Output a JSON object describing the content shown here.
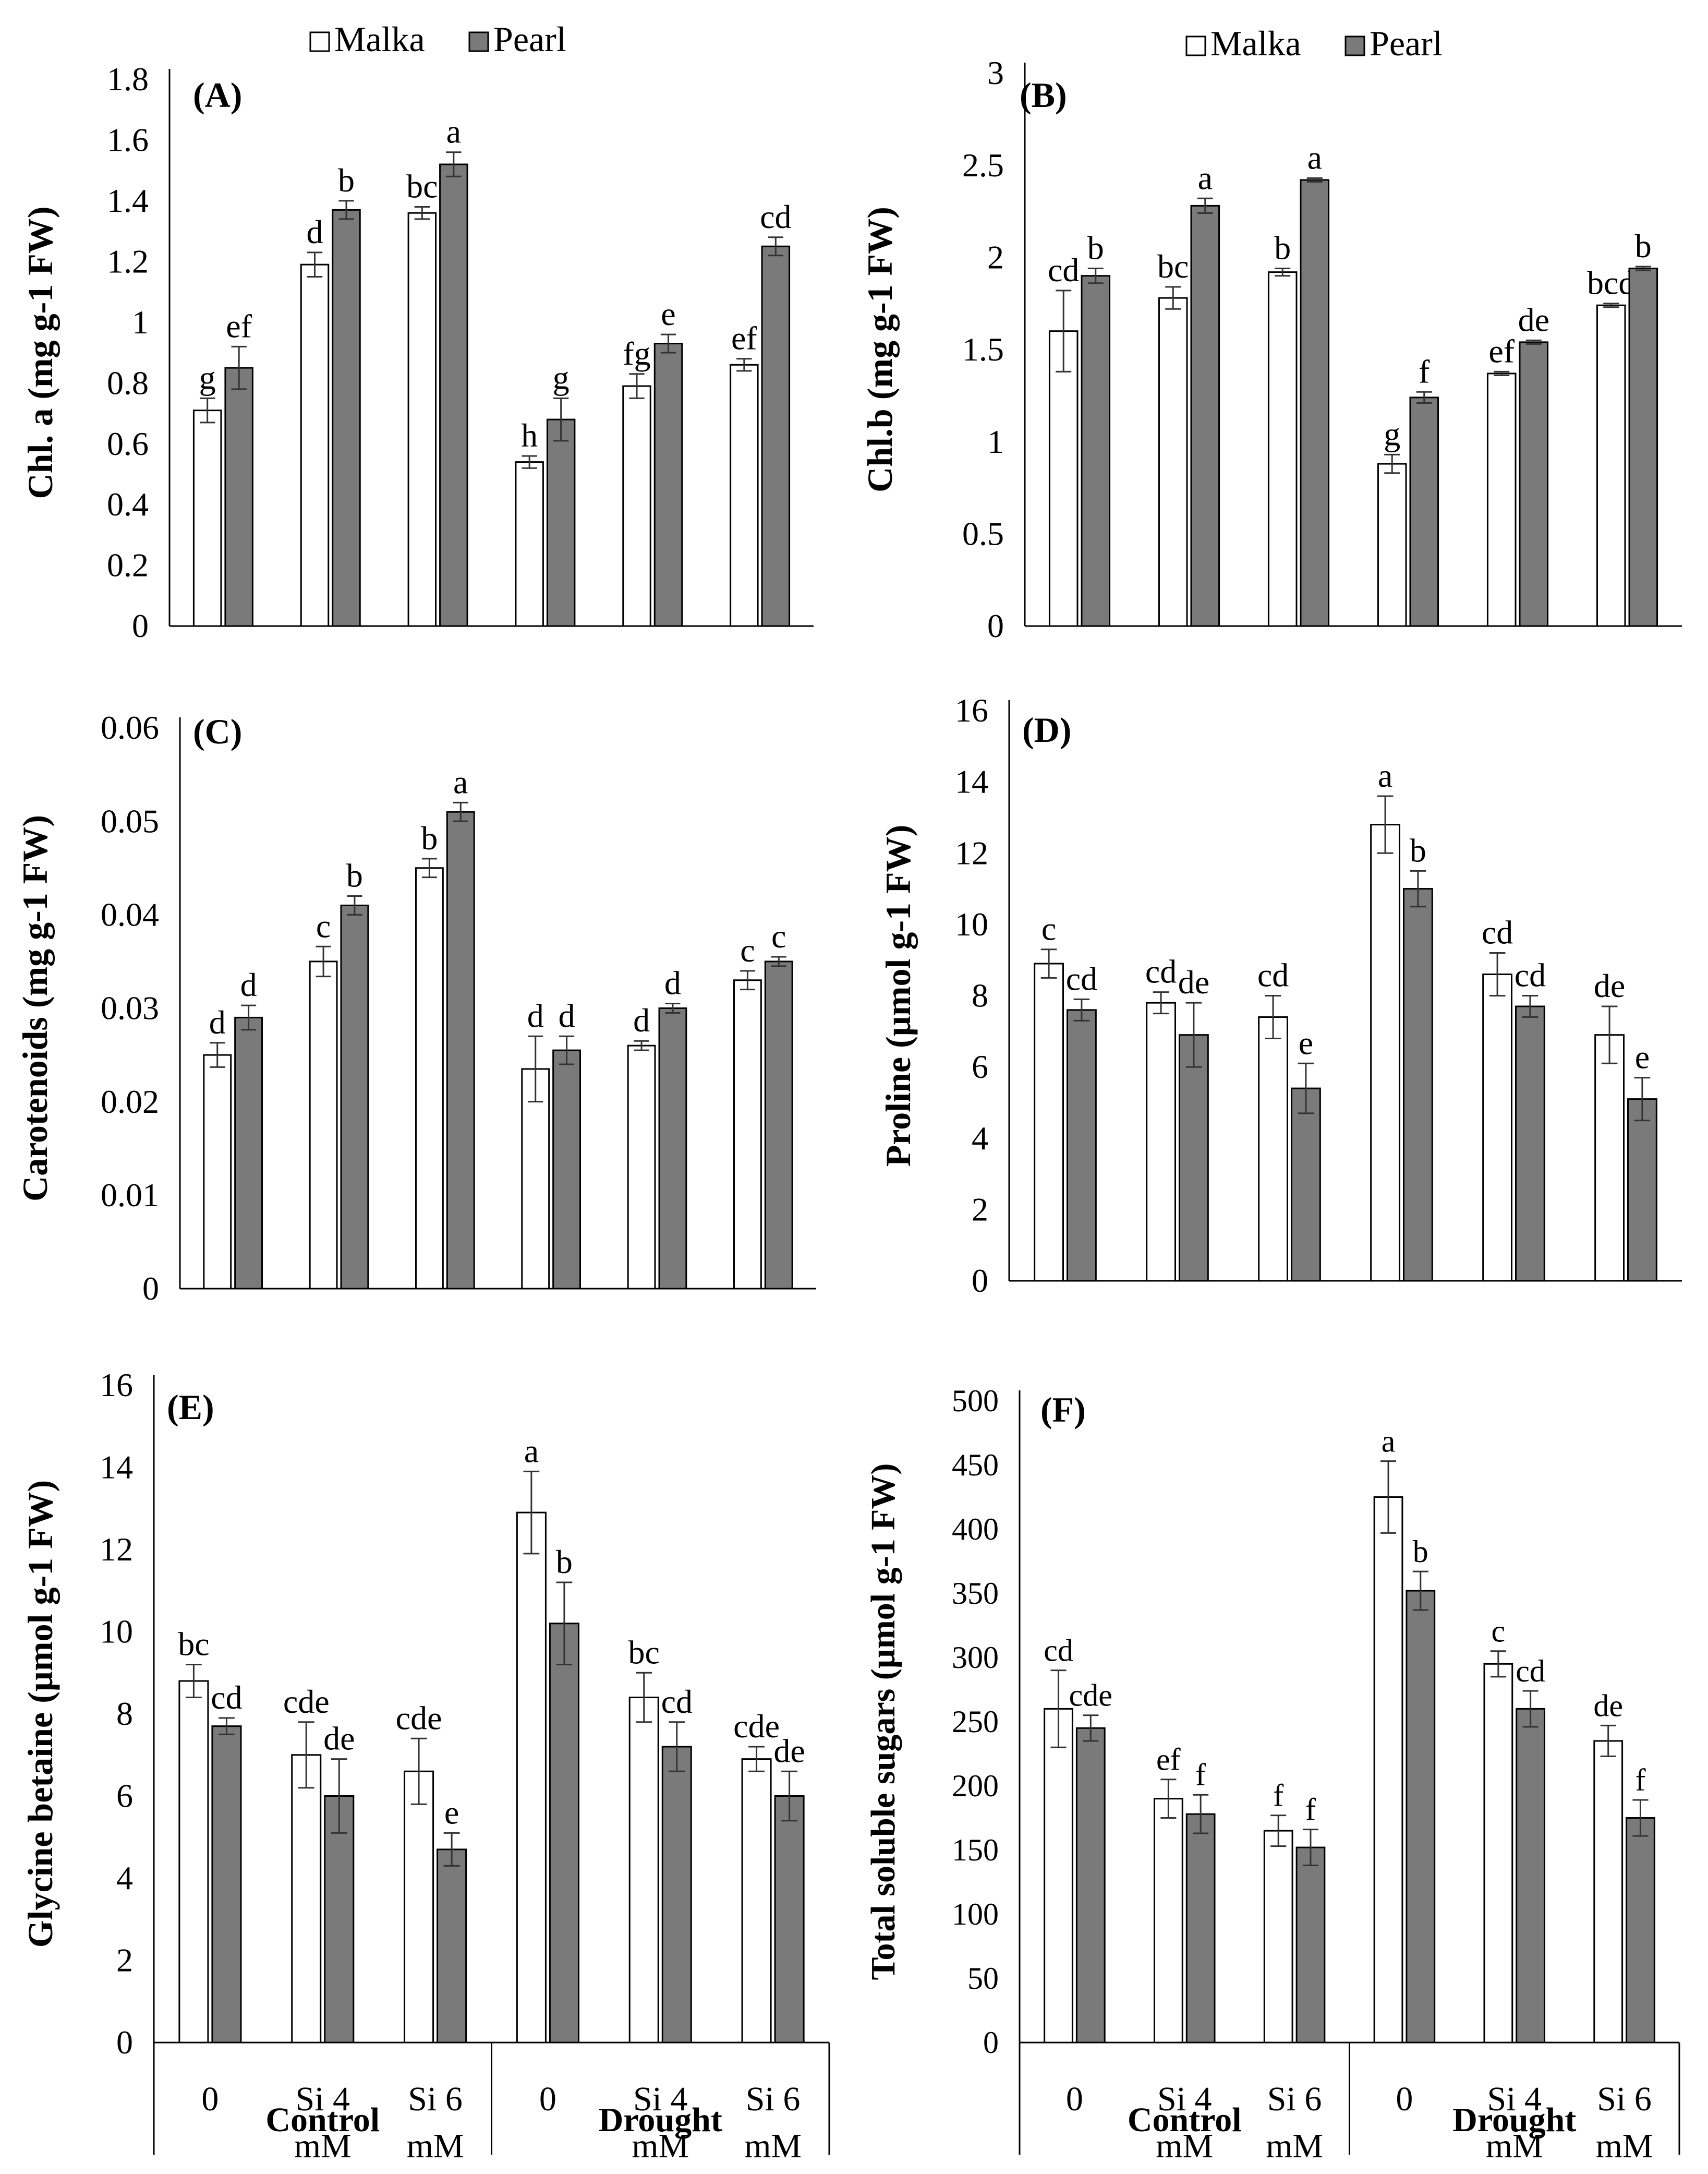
{
  "figure": {
    "legend": {
      "series": [
        "Malka",
        "Pearl"
      ],
      "colors": [
        "#ffffff",
        "#7a7a7a"
      ]
    },
    "x_axis": {
      "ticks": [
        [
          "0"
        ],
        [
          "Si 4",
          "mM"
        ],
        [
          "Si 6",
          "mM"
        ],
        [
          "0"
        ],
        [
          "Si 4",
          "mM"
        ],
        [
          "Si 6",
          "mM"
        ]
      ],
      "groups": [
        "Control",
        "Drought"
      ]
    }
  },
  "chart_data": [
    {
      "type": "bar",
      "panel": "(A)",
      "ylabel": "Chl. a (mg g-1 FW)",
      "ylim": [
        0,
        1.8
      ],
      "yticks": [
        0,
        0.2,
        0.4,
        0.6,
        0.8,
        1,
        1.2,
        1.4,
        1.6,
        1.8
      ],
      "series": [
        {
          "name": "Malka",
          "values": [
            0.71,
            1.19,
            1.36,
            0.54,
            0.79,
            0.86
          ],
          "errors": [
            0.04,
            0.04,
            0.02,
            0.02,
            0.04,
            0.02
          ],
          "letters": [
            "g",
            "d",
            "bc",
            "h",
            "fg",
            "ef"
          ]
        },
        {
          "name": "Pearl",
          "values": [
            0.85,
            1.37,
            1.52,
            0.68,
            0.93,
            1.25
          ],
          "errors": [
            0.07,
            0.03,
            0.04,
            0.07,
            0.03,
            0.03
          ],
          "letters": [
            "ef",
            "b",
            "a",
            "g",
            "e",
            "cd"
          ]
        }
      ]
    },
    {
      "type": "bar",
      "panel": "(B)",
      "ylabel": "Chl.b (mg g-1 FW)",
      "ylim": [
        0,
        3
      ],
      "yticks": [
        0,
        0.5,
        1,
        1.5,
        2,
        2.5,
        3
      ],
      "series": [
        {
          "name": "Malka",
          "values": [
            1.6,
            1.78,
            1.92,
            0.88,
            1.37,
            1.74
          ],
          "errors": [
            0.22,
            0.06,
            0.02,
            0.05,
            0.01,
            0.01
          ],
          "letters": [
            "cd",
            "bc",
            "b",
            "g",
            "ef",
            "bcd"
          ]
        },
        {
          "name": "Pearl",
          "values": [
            1.9,
            2.28,
            2.42,
            1.24,
            1.54,
            1.94
          ],
          "errors": [
            0.04,
            0.04,
            0.01,
            0.03,
            0.01,
            0.01
          ],
          "letters": [
            "b",
            "a",
            "a",
            "f",
            "de",
            "b"
          ]
        }
      ]
    },
    {
      "type": "bar",
      "panel": "(C)",
      "ylabel": "Carotenoids (mg g-1 FW)",
      "ylim": [
        0,
        0.06
      ],
      "yticks": [
        0,
        0.01,
        0.02,
        0.03,
        0.04,
        0.05,
        0.06
      ],
      "series": [
        {
          "name": "Malka",
          "values": [
            0.025,
            0.035,
            0.045,
            0.0235,
            0.026,
            0.033
          ],
          "errors": [
            0.0013,
            0.0016,
            0.001,
            0.0035,
            0.0005,
            0.001
          ],
          "letters": [
            "d",
            "c",
            "b",
            "d",
            "d",
            "c"
          ]
        },
        {
          "name": "Pearl",
          "values": [
            0.029,
            0.041,
            0.051,
            0.0255,
            0.03,
            0.035
          ],
          "errors": [
            0.0013,
            0.001,
            0.001,
            0.0015,
            0.0005,
            0.0005
          ],
          "letters": [
            "d",
            "b",
            "a",
            "d",
            "d",
            "c"
          ]
        }
      ]
    },
    {
      "type": "bar",
      "panel": "(D)",
      "ylabel": "Proline (µmol g-1 FW)",
      "ylim": [
        0,
        16
      ],
      "yticks": [
        0,
        2,
        4,
        6,
        8,
        10,
        12,
        14,
        16
      ],
      "series": [
        {
          "name": "Malka",
          "values": [
            8.9,
            7.8,
            7.4,
            12.8,
            8.6,
            6.9
          ],
          "errors": [
            0.4,
            0.3,
            0.6,
            0.8,
            0.6,
            0.8
          ],
          "letters": [
            "c",
            "cd",
            "cd",
            "a",
            "cd",
            "de"
          ]
        },
        {
          "name": "Pearl",
          "values": [
            7.6,
            6.9,
            5.4,
            11.0,
            7.7,
            5.1
          ],
          "errors": [
            0.3,
            0.9,
            0.7,
            0.5,
            0.3,
            0.6
          ],
          "letters": [
            "cd",
            "de",
            "e",
            "b",
            "cd",
            "e"
          ]
        }
      ]
    },
    {
      "type": "bar",
      "panel": "(E)",
      "ylabel": "Glycine betaine (µmol g-1 FW)",
      "ylim": [
        0,
        16
      ],
      "yticks": [
        0,
        2,
        4,
        6,
        8,
        10,
        12,
        14,
        16
      ],
      "series": [
        {
          "name": "Malka",
          "values": [
            8.8,
            7.0,
            6.6,
            12.9,
            8.4,
            6.9
          ],
          "errors": [
            0.4,
            0.8,
            0.8,
            1.0,
            0.6,
            0.3
          ],
          "letters": [
            "bc",
            "cde",
            "cde",
            "a",
            "bc",
            "cde"
          ]
        },
        {
          "name": "Pearl",
          "values": [
            7.7,
            6.0,
            4.7,
            10.2,
            7.2,
            6.0
          ],
          "errors": [
            0.2,
            0.9,
            0.4,
            1.0,
            0.6,
            0.6
          ],
          "letters": [
            "cd",
            "de",
            "e",
            "b",
            "cd",
            "de"
          ]
        }
      ]
    },
    {
      "type": "bar",
      "panel": "(F)",
      "ylabel": "Total soluble sugars (µmol g-1 FW)",
      "ylim": [
        0,
        500
      ],
      "yticks": [
        0,
        50,
        100,
        150,
        200,
        250,
        300,
        350,
        400,
        450,
        500
      ],
      "series": [
        {
          "name": "Malka",
          "values": [
            260,
            190,
            165,
            425,
            295,
            235
          ],
          "errors": [
            30,
            15,
            12,
            28,
            10,
            12
          ],
          "letters": [
            "cd",
            "ef",
            "f",
            "a",
            "c",
            "de"
          ]
        },
        {
          "name": "Pearl",
          "values": [
            245,
            178,
            152,
            352,
            260,
            175
          ],
          "errors": [
            10,
            15,
            14,
            15,
            14,
            14
          ],
          "letters": [
            "cde",
            "f",
            "f",
            "b",
            "cd",
            "f"
          ]
        }
      ]
    }
  ]
}
